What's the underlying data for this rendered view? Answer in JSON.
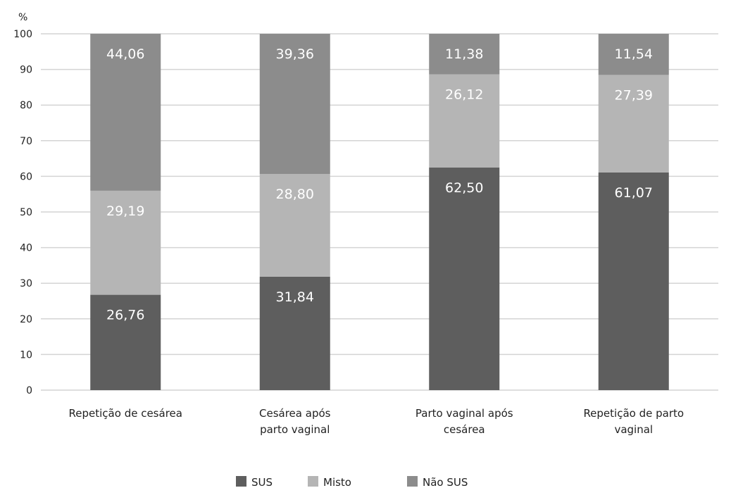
{
  "chart_data": {
    "type": "bar",
    "stacked": true,
    "y_unit_label": "%",
    "ylim": [
      0,
      100
    ],
    "yticks": [
      0,
      10,
      20,
      30,
      40,
      50,
      60,
      70,
      80,
      90,
      100
    ],
    "grid": true,
    "legend_position": "bottom",
    "categories": [
      [
        "Repetição de cesárea"
      ],
      [
        "Cesárea após",
        "parto vaginal"
      ],
      [
        "Parto vaginal após",
        "cesárea"
      ],
      [
        "Repetição de parto",
        "vaginal"
      ]
    ],
    "series": [
      {
        "name": "SUS",
        "color": "#5e5e5e",
        "values": [
          26.76,
          31.84,
          62.5,
          61.07
        ],
        "labels": [
          "26,76",
          "31,84",
          "62,50",
          "61,07"
        ]
      },
      {
        "name": "Misto",
        "color": "#b5b5b5",
        "values": [
          29.19,
          28.8,
          26.12,
          27.39
        ],
        "labels": [
          "29,19",
          "28,80",
          "26,12",
          "27,39"
        ]
      },
      {
        "name": "Não SUS",
        "color": "#8c8c8c",
        "values": [
          44.06,
          39.36,
          11.38,
          11.54
        ],
        "labels": [
          "44,06",
          "39,36",
          "11,38",
          "11,54"
        ]
      }
    ]
  }
}
